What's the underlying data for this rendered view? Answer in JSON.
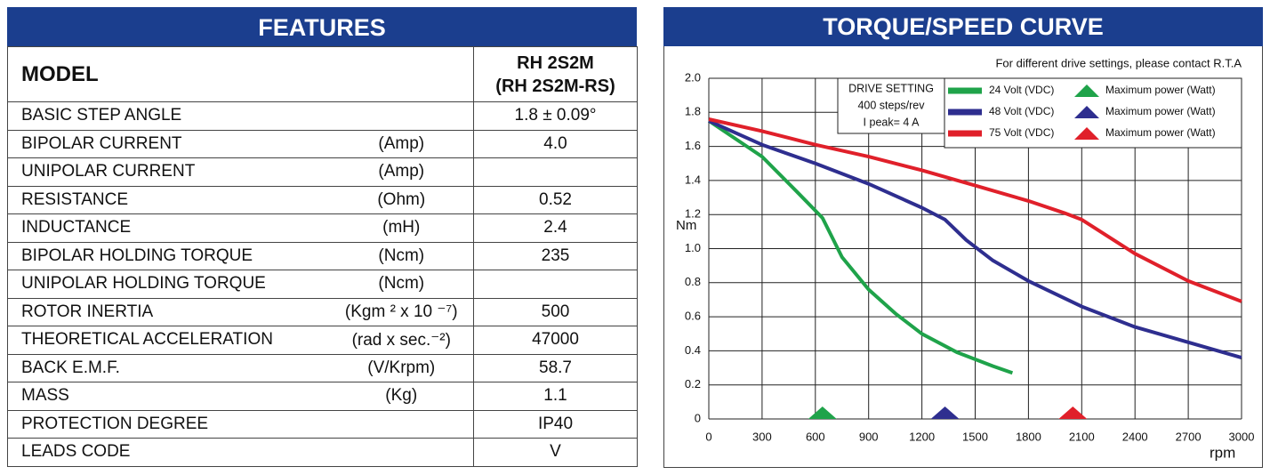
{
  "table": {
    "title": "FEATURES",
    "header": {
      "label": "MODEL",
      "value": [
        "RH 2S2M",
        "(RH 2S2M-RS)"
      ]
    },
    "rows": [
      [
        "BASIC STEP ANGLE",
        null,
        "1.8 ± 0.09°"
      ],
      [
        "BIPOLAR CURRENT",
        "(Amp)",
        "4.0"
      ],
      [
        "UNIPOLAR CURRENT",
        "(Amp)",
        null
      ],
      [
        "RESISTANCE",
        "(Ohm)",
        "0.52"
      ],
      [
        "INDUCTANCE",
        "(mH)",
        "2.4"
      ],
      [
        "BIPOLAR HOLDING TORQUE",
        "(Ncm)",
        "235"
      ],
      [
        "UNIPOLAR HOLDING TORQUE",
        "(Ncm)",
        null
      ],
      [
        "ROTOR INERTIA",
        "(Kgm ² x 10 ⁻⁷)",
        "500"
      ],
      [
        "THEORETICAL ACCELERATION",
        "(rad x sec.⁻²)",
        "47000"
      ],
      [
        "BACK E.M.F.",
        "(V/Krpm)",
        "58.7"
      ],
      [
        "MASS",
        "(Kg)",
        "1.1"
      ],
      [
        "PROTECTION DEGREE",
        null,
        "IP40"
      ],
      [
        "LEADS CODE",
        null,
        "V"
      ]
    ]
  },
  "chart_data": {
    "type": "line",
    "title": "TORQUE/SPEED CURVE",
    "note": "For different drive settings, please contact R.T.A",
    "drive_setting": [
      "DRIVE SETTING",
      "400 steps/rev",
      "I peak= 4 A"
    ],
    "y_label": "Nm",
    "x_label": "rpm",
    "max_power_label": "Maximum power (Watt)",
    "xlim": [
      0,
      3000
    ],
    "xticks": [
      0,
      300,
      600,
      900,
      1200,
      1500,
      1800,
      2100,
      2400,
      2700,
      3000
    ],
    "ylim": [
      0,
      2
    ],
    "yticks": [
      0,
      0.2,
      0.4,
      0.6,
      0.8,
      {
        "value": 1,
        "label": "1.0"
      },
      1.2,
      1.4,
      1.6,
      1.8,
      {
        "value": 2,
        "label": "2.0"
      }
    ],
    "grid": true,
    "series": [
      {
        "name": "24 Volt (VDC)",
        "color": "#1fa34a",
        "max_power_rpm": 640,
        "x": [
          0,
          300,
          500,
          640,
          750,
          900,
          1050,
          1200,
          1400,
          1600,
          1710
        ],
        "values": [
          1.75,
          1.54,
          1.33,
          1.18,
          0.95,
          0.76,
          0.62,
          0.5,
          0.39,
          0.31,
          0.27
        ]
      },
      {
        "name": "48 Volt (VDC)",
        "color": "#2e2e8f",
        "max_power_rpm": 1330,
        "x": [
          0,
          300,
          600,
          900,
          1200,
          1330,
          1450,
          1600,
          1800,
          2100,
          2400,
          2700,
          3000
        ],
        "values": [
          1.75,
          1.61,
          1.5,
          1.38,
          1.24,
          1.17,
          1.05,
          0.93,
          0.81,
          0.66,
          0.54,
          0.45,
          0.36
        ]
      },
      {
        "name": "75 Volt (VDC)",
        "color": "#e0202a",
        "max_power_rpm": 2050,
        "x": [
          0,
          300,
          600,
          900,
          1200,
          1500,
          1800,
          2000,
          2100,
          2400,
          2700,
          3000
        ],
        "values": [
          1.76,
          1.69,
          1.61,
          1.54,
          1.46,
          1.37,
          1.28,
          1.21,
          1.17,
          0.97,
          0.81,
          0.69
        ]
      }
    ]
  }
}
